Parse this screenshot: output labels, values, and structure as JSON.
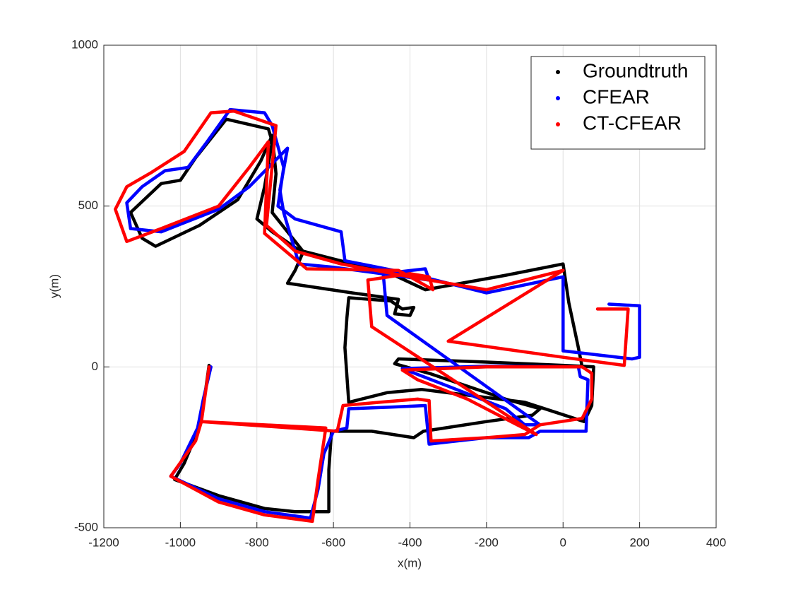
{
  "chart_data": {
    "type": "line",
    "xlabel": "x(m)",
    "ylabel": "y(m)",
    "xlim": [
      -1200,
      400
    ],
    "ylim": [
      -500,
      1000
    ],
    "xticks": [
      -1200,
      -1000,
      -800,
      -600,
      -400,
      -200,
      0,
      200,
      400
    ],
    "yticks": [
      -500,
      0,
      500,
      1000
    ],
    "grid": true,
    "legend": "upper right",
    "series": [
      {
        "name": "Groundtruth",
        "color": "#000000",
        "x": [
          -925,
          -935,
          -955,
          -990,
          -1015,
          -900,
          -780,
          -700,
          -612,
          -612,
          -605,
          -500,
          -390,
          -365,
          -200,
          -80,
          -60,
          -150,
          -350,
          -440,
          -430,
          -200,
          0,
          80,
          75,
          55,
          -100,
          -370,
          -460,
          -560,
          -570,
          -565,
          -560,
          -450,
          -420,
          -390,
          -400,
          -440,
          -430,
          -550,
          -720,
          -700,
          -680,
          -760,
          -800,
          -780,
          -760,
          -770,
          -880,
          -960,
          -1000,
          -1050,
          -1130,
          -1100,
          -1065,
          -950,
          -850,
          -790,
          -760,
          -750,
          -760,
          -680,
          -450,
          -360,
          -150,
          0,
          15,
          40,
          50
        ],
        "values": [
          5,
          -80,
          -200,
          -300,
          -350,
          -400,
          -440,
          -450,
          -450,
          -320,
          -200,
          -200,
          -220,
          -200,
          -170,
          -150,
          -130,
          -100,
          -20,
          10,
          25,
          15,
          5,
          0,
          -120,
          -170,
          -110,
          -70,
          -80,
          -110,
          60,
          150,
          215,
          205,
          180,
          185,
          160,
          165,
          210,
          230,
          260,
          300,
          355,
          420,
          460,
          560,
          700,
          740,
          770,
          650,
          580,
          570,
          480,
          400,
          375,
          440,
          520,
          640,
          720,
          600,
          480,
          360,
          290,
          240,
          285,
          320,
          200,
          60,
          0
        ]
      },
      {
        "name": "CFEAR",
        "color": "#0000ff",
        "x": [
          -920,
          -940,
          -955,
          -1000,
          -1025,
          -900,
          -780,
          -660,
          -640,
          -625,
          -600,
          -565,
          -560,
          -450,
          -360,
          -350,
          -200,
          -90,
          -60,
          60,
          65,
          45,
          40,
          -200,
          -420,
          -300,
          -150,
          -100,
          -60,
          -460,
          -470,
          -360,
          -350,
          -600,
          -690,
          -730,
          -740,
          -720,
          -820,
          -900,
          -1050,
          -1130,
          -1140,
          -1100,
          -1040,
          -980,
          -930,
          -870,
          -780,
          -760,
          -730,
          -745,
          -700,
          -580,
          -570,
          -400,
          -200,
          0,
          0,
          180,
          200,
          200,
          120
        ],
        "values": [
          0,
          -100,
          -190,
          -300,
          -340,
          -410,
          -450,
          -470,
          -380,
          -270,
          -200,
          -190,
          -130,
          -125,
          -120,
          -240,
          -220,
          -220,
          -200,
          -200,
          -40,
          -30,
          0,
          2,
          -5,
          -60,
          -130,
          -180,
          -180,
          160,
          290,
          305,
          270,
          310,
          320,
          480,
          550,
          680,
          560,
          490,
          420,
          430,
          510,
          560,
          610,
          620,
          700,
          800,
          790,
          750,
          620,
          500,
          460,
          420,
          330,
          290,
          230,
          280,
          50,
          25,
          30,
          190,
          195
        ]
      },
      {
        "name": "CT-CFEAR",
        "color": "#ff0000",
        "x": [
          -925,
          -945,
          -620,
          -640,
          -655,
          -780,
          -900,
          -1025,
          -960,
          -945,
          -590,
          -575,
          -480,
          -380,
          -350,
          -345,
          -200,
          -100,
          -60,
          50,
          75,
          75,
          50,
          -200,
          -420,
          -380,
          -250,
          -120,
          -70,
          -500,
          -510,
          -400,
          -350,
          -340,
          -430,
          -670,
          -780,
          -770,
          -820,
          -900,
          -1050,
          -1140,
          -1170,
          -1140,
          -1075,
          -990,
          -920,
          -860,
          -750,
          -775,
          -700,
          -580,
          -400,
          -200,
          0,
          -300,
          0,
          160,
          170,
          90
        ],
        "values": [
          0,
          -170,
          -190,
          -350,
          -480,
          -460,
          -420,
          -340,
          -230,
          -170,
          -200,
          -120,
          -110,
          -100,
          -105,
          -230,
          -220,
          -210,
          -180,
          -160,
          -100,
          -20,
          0,
          0,
          -10,
          -40,
          -100,
          -180,
          -210,
          125,
          270,
          290,
          280,
          240,
          300,
          305,
          415,
          700,
          620,
          500,
          430,
          390,
          490,
          560,
          605,
          670,
          790,
          795,
          750,
          440,
          360,
          320,
          280,
          240,
          300,
          80,
          30,
          5,
          180,
          180
        ]
      }
    ]
  }
}
